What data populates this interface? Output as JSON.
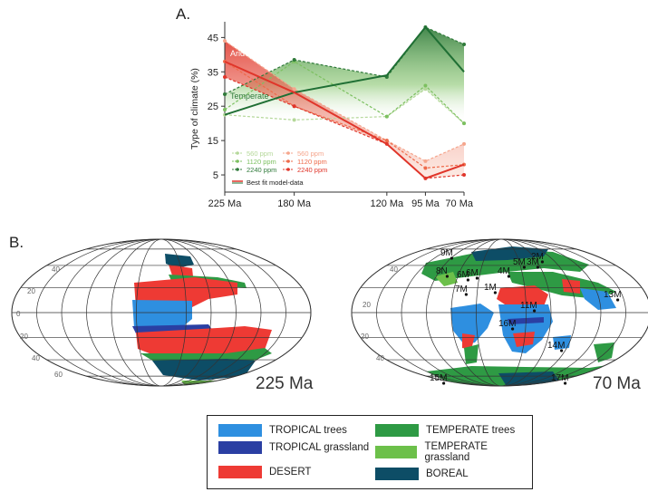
{
  "panel_a_label": "A.",
  "panel_b_label": "B.",
  "chart_data": {
    "type": "line",
    "ylabel": "Type of climate (%)",
    "x_ticks": [
      "225 Ma",
      "180 Ma",
      "120 Ma",
      "95 Ma",
      "70 Ma"
    ],
    "x_ma": [
      225,
      180,
      120,
      95,
      70
    ],
    "yticks": [
      5,
      15,
      25,
      35,
      45
    ],
    "ylim": [
      0,
      48
    ],
    "annotations": {
      "arid": "Arid",
      "temperate": "Temperate"
    },
    "legend": {
      "temperate": [
        "560 ppm",
        "1120 ppm",
        "2240 ppm"
      ],
      "arid": [
        "560 ppm",
        "1120 ppm",
        "2240 ppm"
      ],
      "best_fit": "Best fit model-data"
    },
    "series": [
      {
        "group": "temperate",
        "co2": "560 ppm",
        "color": "#b5d89a",
        "y": [
          22.5,
          21,
          22,
          30,
          20
        ]
      },
      {
        "group": "temperate",
        "co2": "1120 ppm",
        "color": "#7cc060",
        "y": [
          24,
          38,
          22,
          31,
          20
        ]
      },
      {
        "group": "temperate",
        "co2": "2240 ppm",
        "color": "#2f7a3a",
        "y": [
          28.5,
          38.5,
          33.5,
          48,
          43
        ]
      },
      {
        "group": "arid",
        "co2": "560 ppm",
        "color": "#f5a58c",
        "y": [
          44,
          30,
          15,
          9,
          14
        ]
      },
      {
        "group": "arid",
        "co2": "1120 ppm",
        "color": "#ee6a4a",
        "y": [
          38,
          25,
          15,
          7,
          8
        ]
      },
      {
        "group": "arid",
        "co2": "2240 ppm",
        "color": "#e0352a",
        "y": [
          33.5,
          25,
          14,
          4,
          5
        ]
      }
    ],
    "best_fit": [
      {
        "group": "temperate",
        "color": "#1f6f34",
        "y": [
          22.5,
          29,
          34,
          48,
          35
        ]
      },
      {
        "group": "arid",
        "color": "#e0352a",
        "y": [
          38,
          29,
          14,
          4,
          8
        ]
      }
    ]
  },
  "maps": [
    {
      "title": "225 Ma",
      "lat_labels": [
        "40",
        "20",
        "0",
        "20",
        "40",
        "60"
      ],
      "markers": []
    },
    {
      "title": "70 Ma",
      "lat_labels": [
        "40",
        "20",
        "20",
        "40"
      ],
      "markers": [
        "9M",
        "8N",
        "6M",
        "5M",
        "4M",
        "3M",
        "2M",
        "1M",
        "7M",
        "6M",
        "11M",
        "16M",
        "13M",
        "14M",
        "15M",
        "17M"
      ]
    }
  ],
  "legend": [
    {
      "label": "TROPICAL trees",
      "color": "#2e8fe0"
    },
    {
      "label": "TEMPERATE trees",
      "color": "#2e9a44"
    },
    {
      "label": "TROPICAL grassland",
      "color": "#2a3fa3"
    },
    {
      "label": "TEMPERATE grassland",
      "color": "#6cc04a"
    },
    {
      "label": "DESERT",
      "color": "#ee3a34"
    },
    {
      "label": "BOREAL",
      "color": "#0d4d66"
    }
  ]
}
